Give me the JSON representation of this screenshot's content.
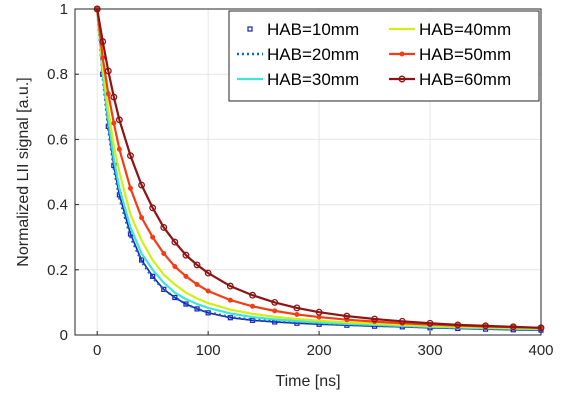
{
  "chart_data": {
    "type": "line",
    "title": "",
    "xlabel": "Time [ns]",
    "ylabel": "Normalized LII signal [a.u.]",
    "xlim": [
      -20,
      400
    ],
    "ylim": [
      0,
      1
    ],
    "xticks": [
      0,
      100,
      200,
      300,
      400
    ],
    "yticks": [
      0,
      0.2,
      0.4,
      0.6,
      0.8,
      1
    ],
    "xtick_labels": [
      "0",
      "100",
      "200",
      "300",
      "400"
    ],
    "ytick_labels": [
      "0",
      "0.2",
      "0.4",
      "0.6",
      "0.8",
      "1"
    ],
    "grid": true,
    "legend_position": "top-right",
    "legend_columns": 2,
    "series": [
      {
        "name": "HAB=10mm",
        "color": "#1c1cb4",
        "style": "square-markers",
        "x": [
          0,
          5,
          10,
          15,
          20,
          30,
          40,
          50,
          60,
          70,
          80,
          90,
          100,
          120,
          140,
          160,
          180,
          200,
          225,
          250,
          275,
          300,
          325,
          350,
          375,
          400
        ],
        "y": [
          1.0,
          0.8,
          0.64,
          0.52,
          0.43,
          0.31,
          0.23,
          0.18,
          0.14,
          0.115,
          0.095,
          0.08,
          0.068,
          0.053,
          0.045,
          0.04,
          0.036,
          0.033,
          0.03,
          0.027,
          0.025,
          0.022,
          0.02,
          0.018,
          0.016,
          0.015
        ]
      },
      {
        "name": "HAB=20mm",
        "color": "#0a64c8",
        "style": "dotted",
        "x": [
          0,
          5,
          10,
          15,
          20,
          30,
          40,
          50,
          60,
          70,
          80,
          90,
          100,
          120,
          140,
          160,
          180,
          200,
          225,
          250,
          275,
          300,
          325,
          350,
          375,
          400
        ],
        "y": [
          1.0,
          0.79,
          0.63,
          0.51,
          0.42,
          0.3,
          0.225,
          0.175,
          0.14,
          0.115,
          0.095,
          0.08,
          0.07,
          0.055,
          0.047,
          0.041,
          0.037,
          0.034,
          0.031,
          0.028,
          0.026,
          0.023,
          0.021,
          0.019,
          0.017,
          0.016
        ]
      },
      {
        "name": "HAB=30mm",
        "color": "#3ce6d2",
        "style": "solid",
        "x": [
          0,
          5,
          10,
          15,
          20,
          30,
          40,
          50,
          60,
          70,
          80,
          90,
          100,
          120,
          140,
          160,
          180,
          200,
          225,
          250,
          275,
          300,
          325,
          350,
          375,
          400
        ],
        "y": [
          1.0,
          0.8,
          0.66,
          0.54,
          0.45,
          0.33,
          0.25,
          0.2,
          0.16,
          0.13,
          0.11,
          0.095,
          0.083,
          0.066,
          0.055,
          0.048,
          0.043,
          0.038,
          0.034,
          0.031,
          0.028,
          0.025,
          0.023,
          0.021,
          0.019,
          0.018
        ]
      },
      {
        "name": "HAB=40mm",
        "color": "#d2ee14",
        "style": "solid",
        "x": [
          0,
          5,
          10,
          15,
          20,
          30,
          40,
          50,
          60,
          70,
          80,
          90,
          100,
          120,
          140,
          160,
          180,
          200,
          225,
          250,
          275,
          300,
          325,
          350,
          375,
          400
        ],
        "y": [
          1.0,
          0.82,
          0.69,
          0.58,
          0.5,
          0.37,
          0.29,
          0.23,
          0.185,
          0.155,
          0.13,
          0.112,
          0.098,
          0.078,
          0.065,
          0.056,
          0.049,
          0.044,
          0.039,
          0.035,
          0.031,
          0.028,
          0.025,
          0.023,
          0.021,
          0.02
        ]
      },
      {
        "name": "HAB=50mm",
        "color": "#f53c14",
        "style": "dot-markers",
        "x": [
          0,
          5,
          10,
          15,
          20,
          30,
          40,
          50,
          60,
          70,
          80,
          90,
          100,
          120,
          140,
          160,
          180,
          200,
          225,
          250,
          275,
          300,
          325,
          350,
          375,
          400
        ],
        "y": [
          1.0,
          0.85,
          0.74,
          0.65,
          0.57,
          0.45,
          0.36,
          0.3,
          0.25,
          0.21,
          0.18,
          0.155,
          0.135,
          0.107,
          0.088,
          0.074,
          0.063,
          0.055,
          0.047,
          0.041,
          0.036,
          0.032,
          0.029,
          0.026,
          0.024,
          0.022
        ]
      },
      {
        "name": "HAB=60mm",
        "color": "#8c1414",
        "style": "circle-markers",
        "x": [
          0,
          5,
          10,
          15,
          20,
          30,
          40,
          50,
          60,
          70,
          80,
          90,
          100,
          120,
          140,
          160,
          180,
          200,
          225,
          250,
          275,
          300,
          325,
          350,
          375,
          400
        ],
        "y": [
          1.0,
          0.9,
          0.81,
          0.73,
          0.66,
          0.55,
          0.46,
          0.39,
          0.33,
          0.285,
          0.245,
          0.215,
          0.19,
          0.15,
          0.122,
          0.1,
          0.083,
          0.07,
          0.058,
          0.049,
          0.042,
          0.036,
          0.031,
          0.028,
          0.025,
          0.022
        ]
      }
    ]
  }
}
